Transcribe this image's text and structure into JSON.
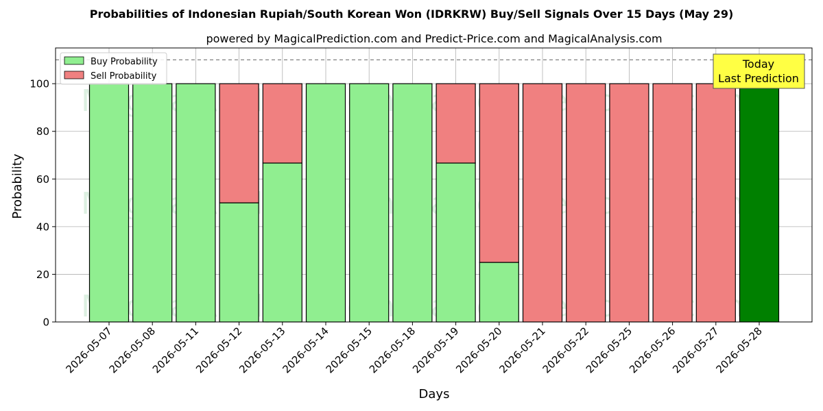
{
  "chart_data": {
    "type": "bar",
    "title": "Probabilities of Indonesian Rupiah/South Korean Won (IDRKRW) Buy/Sell Signals Over 15 Days (May 29)",
    "subtitle": "powered by MagicalPrediction.com and Predict-Price.com and MagicalAnalysis.com",
    "xlabel": "Days",
    "ylabel": "Probability",
    "ylim": [
      0,
      115
    ],
    "yticks": [
      0,
      20,
      40,
      60,
      80,
      100
    ],
    "reference_line": 110,
    "grid": true,
    "legend_position": "top-left",
    "categories": [
      "2026-05-07",
      "2026-05-08",
      "2026-05-11",
      "2026-05-12",
      "2026-05-13",
      "2026-05-14",
      "2026-05-15",
      "2026-05-18",
      "2026-05-19",
      "2026-05-20",
      "2026-05-21",
      "2026-05-22",
      "2026-05-25",
      "2026-05-26",
      "2026-05-27",
      "2026-05-28"
    ],
    "series": [
      {
        "name": "Buy Probability",
        "color": "#90ee90",
        "values": [
          100,
          100,
          100,
          50,
          66.7,
          100,
          100,
          100,
          66.7,
          25,
          0,
          0,
          0,
          0,
          0,
          100
        ]
      },
      {
        "name": "Sell Probability",
        "color": "#f08080",
        "values": [
          0,
          0,
          0,
          50,
          33.3,
          0,
          0,
          0,
          33.3,
          75,
          100,
          100,
          100,
          100,
          100,
          0
        ]
      }
    ],
    "highlight": {
      "index": 15,
      "color": "#008000"
    },
    "annotation": {
      "line1": "Today",
      "line2": "Last Prediction",
      "background": "#ffff44"
    },
    "watermarks": [
      "MagicalAnalysis.com",
      "MagicalPrediction.com"
    ]
  }
}
